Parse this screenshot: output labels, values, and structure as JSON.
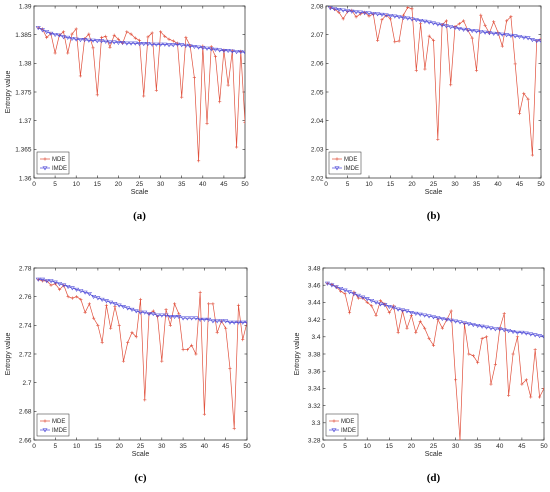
{
  "colors": {
    "mde": "#e0503c",
    "imde": "#4b47d8",
    "axis": "#262626",
    "background": "#ffffff"
  },
  "chart_data": [
    {
      "type": "line",
      "panel_label": "(a)",
      "xlabel": "Scale",
      "ylabel": "Entropy value",
      "xlim": [
        0,
        50
      ],
      "ylim": [
        1.36,
        1.39
      ],
      "xticks": [
        "0",
        "5",
        "10",
        "15",
        "20",
        "25",
        "30",
        "35",
        "40",
        "45",
        "50"
      ],
      "yticks": [
        "1.36",
        "1.365",
        "1.37",
        "1.375",
        "1.38",
        "1.385",
        "1.39"
      ],
      "legend_position": "bottom-left",
      "x": [
        1,
        2,
        3,
        4,
        5,
        6,
        7,
        8,
        9,
        10,
        11,
        12,
        13,
        14,
        15,
        16,
        17,
        18,
        19,
        20,
        21,
        22,
        23,
        24,
        25,
        26,
        27,
        28,
        29,
        30,
        31,
        32,
        33,
        34,
        35,
        36,
        37,
        38,
        39,
        40,
        41,
        42,
        43,
        44,
        45,
        46,
        47,
        48,
        49,
        50
      ],
      "series": [
        {
          "name": "MDE",
          "values": [
            1.3862,
            1.386,
            1.3845,
            1.3852,
            1.3818,
            1.3849,
            1.3855,
            1.3818,
            1.3851,
            1.386,
            1.3778,
            1.3843,
            1.3851,
            1.3827,
            1.3745,
            1.3845,
            1.3847,
            1.3828,
            1.3849,
            1.3842,
            1.3835,
            1.3855,
            1.3851,
            1.3844,
            1.384,
            1.3743,
            1.3846,
            1.3853,
            1.3753,
            1.3855,
            1.3847,
            1.3842,
            1.3839,
            1.3835,
            1.3741,
            1.3845,
            1.3831,
            1.3775,
            1.363,
            1.383,
            1.3695,
            1.3829,
            1.3812,
            1.3733,
            1.3823,
            1.3762,
            1.3822,
            1.3654,
            1.3821,
            1.3697
          ]
        },
        {
          "name": "IMDE",
          "values": [
            1.3862,
            1.3858,
            1.3855,
            1.3852,
            1.385,
            1.3849,
            1.3846,
            1.3845,
            1.3843,
            1.3842,
            1.3841,
            1.3841,
            1.384,
            1.384,
            1.3839,
            1.3839,
            1.3838,
            1.3837,
            1.3837,
            1.3836,
            1.3836,
            1.3835,
            1.3835,
            1.3835,
            1.3834,
            1.3834,
            1.3834,
            1.3833,
            1.3833,
            1.3833,
            1.3833,
            1.3832,
            1.3832,
            1.3833,
            1.3832,
            1.3831,
            1.383,
            1.3829,
            1.3828,
            1.3827,
            1.3826,
            1.3825,
            1.3824,
            1.3823,
            1.3822,
            1.3822,
            1.3821,
            1.382,
            1.382,
            1.3819
          ]
        }
      ]
    },
    {
      "type": "line",
      "panel_label": "(b)",
      "xlabel": "Scale",
      "ylabel": "",
      "xlim": [
        0,
        50
      ],
      "ylim": [
        2.02,
        2.08
      ],
      "xticks": [
        "0",
        "5",
        "10",
        "15",
        "20",
        "25",
        "30",
        "35",
        "40",
        "45",
        "50"
      ],
      "yticks": [
        "2.02",
        "2.03",
        "2.04",
        "2.05",
        "2.06",
        "2.07",
        "2.08"
      ],
      "legend_position": "bottom-left",
      "x": [
        1,
        2,
        3,
        4,
        5,
        6,
        7,
        8,
        9,
        10,
        11,
        12,
        13,
        14,
        15,
        16,
        17,
        18,
        19,
        20,
        21,
        22,
        23,
        24,
        25,
        26,
        27,
        28,
        29,
        30,
        31,
        32,
        33,
        34,
        35,
        36,
        37,
        38,
        39,
        40,
        41,
        42,
        43,
        44,
        45,
        46,
        47,
        48,
        49,
        50
      ],
      "series": [
        {
          "name": "MDE",
          "values": [
            2.0795,
            2.0788,
            2.0778,
            2.0755,
            2.078,
            2.0785,
            2.0762,
            2.0772,
            2.0778,
            2.0765,
            2.0772,
            2.068,
            2.0752,
            2.0768,
            2.0755,
            2.0675,
            2.0678,
            2.0768,
            2.0795,
            2.079,
            2.0575,
            2.0738,
            2.058,
            2.0695,
            2.068,
            2.0335,
            2.0735,
            2.0748,
            2.0525,
            2.0728,
            2.0738,
            2.0748,
            2.0715,
            2.0688,
            2.0575,
            2.0768,
            2.0732,
            2.0705,
            2.0745,
            2.0708,
            2.066,
            2.0748,
            2.0763,
            2.0598,
            2.0425,
            2.0495,
            2.0475,
            2.028,
            2.0678,
            2.0685
          ]
        },
        {
          "name": "IMDE",
          "values": [
            2.0793,
            2.079,
            2.0787,
            2.0785,
            2.0783,
            2.0781,
            2.0779,
            2.0778,
            2.0776,
            2.0775,
            2.0773,
            2.0772,
            2.077,
            2.0768,
            2.0766,
            2.0764,
            2.0762,
            2.0759,
            2.0757,
            2.0754,
            2.0752,
            2.0749,
            2.0746,
            2.0743,
            2.074,
            2.0736,
            2.0733,
            2.073,
            2.0727,
            2.0724,
            2.0721,
            2.0718,
            2.0716,
            2.0714,
            2.0712,
            2.071,
            2.0708,
            2.0706,
            2.0704,
            2.0703,
            2.0701,
            2.0699,
            2.0697,
            2.0695,
            2.0693,
            2.069,
            2.0688,
            2.0682,
            2.0678,
            2.0678
          ]
        }
      ]
    },
    {
      "type": "line",
      "panel_label": "(c)",
      "xlabel": "Scale",
      "ylabel": "Entropy value",
      "xlim": [
        0,
        50
      ],
      "ylim": [
        2.66,
        2.78
      ],
      "xticks": [
        "0",
        "5",
        "10",
        "15",
        "20",
        "25",
        "30",
        "35",
        "40",
        "45",
        "50"
      ],
      "yticks": [
        "2.66",
        "2.68",
        "2.7",
        "2.72",
        "2.74",
        "2.76",
        "2.78"
      ],
      "legend_position": "bottom-left",
      "x": [
        1,
        2,
        3,
        4,
        5,
        6,
        7,
        8,
        9,
        10,
        11,
        12,
        13,
        14,
        15,
        16,
        17,
        18,
        19,
        20,
        21,
        22,
        23,
        24,
        25,
        26,
        27,
        28,
        29,
        30,
        31,
        32,
        33,
        34,
        35,
        36,
        37,
        38,
        39,
        40,
        41,
        42,
        43,
        44,
        45,
        46,
        47,
        48,
        49,
        50
      ],
      "series": [
        {
          "name": "MDE",
          "values": [
            2.772,
            2.771,
            2.771,
            2.768,
            2.769,
            2.765,
            2.768,
            2.76,
            2.759,
            2.76,
            2.758,
            2.749,
            2.755,
            2.745,
            2.74,
            2.728,
            2.754,
            2.738,
            2.753,
            2.74,
            2.715,
            2.728,
            2.735,
            2.732,
            2.758,
            2.688,
            2.748,
            2.75,
            2.746,
            2.715,
            2.751,
            2.74,
            2.755,
            2.748,
            2.723,
            2.723,
            2.726,
            2.72,
            2.763,
            2.678,
            2.755,
            2.755,
            2.735,
            2.743,
            2.738,
            2.71,
            2.668,
            2.754,
            2.73,
            2.742
          ]
        },
        {
          "name": "IMDE",
          "values": [
            2.772,
            2.772,
            2.771,
            2.771,
            2.77,
            2.769,
            2.768,
            2.767,
            2.766,
            2.765,
            2.764,
            2.763,
            2.762,
            2.76,
            2.759,
            2.758,
            2.757,
            2.756,
            2.755,
            2.754,
            2.753,
            2.752,
            2.751,
            2.75,
            2.749,
            2.749,
            2.748,
            2.748,
            2.747,
            2.747,
            2.747,
            2.746,
            2.746,
            2.746,
            2.745,
            2.745,
            2.745,
            2.745,
            2.744,
            2.744,
            2.744,
            2.743,
            2.743,
            2.743,
            2.743,
            2.742,
            2.742,
            2.742,
            2.742,
            2.742
          ]
        }
      ]
    },
    {
      "type": "line",
      "panel_label": "(d)",
      "xlabel": "Scale",
      "ylabel": "Entropy value",
      "xlim": [
        0,
        50
      ],
      "ylim": [
        3.28,
        3.48
      ],
      "xticks": [
        "0",
        "5",
        "10",
        "15",
        "20",
        "25",
        "30",
        "35",
        "40",
        "45",
        "50"
      ],
      "yticks": [
        "3.28",
        "3.3",
        "3.32",
        "3.34",
        "3.36",
        "3.38",
        "3.4",
        "3.42",
        "3.44",
        "3.46",
        "3.48"
      ],
      "legend_position": "bottom-left",
      "x": [
        1,
        2,
        3,
        4,
        5,
        6,
        7,
        8,
        9,
        10,
        11,
        12,
        13,
        14,
        15,
        16,
        17,
        18,
        19,
        20,
        21,
        22,
        23,
        24,
        25,
        26,
        27,
        28,
        29,
        30,
        31,
        32,
        33,
        34,
        35,
        36,
        37,
        38,
        39,
        40,
        41,
        42,
        43,
        44,
        45,
        46,
        47,
        48,
        49,
        50
      ],
      "series": [
        {
          "name": "MDE",
          "values": [
            3.462,
            3.461,
            3.458,
            3.453,
            3.45,
            3.428,
            3.452,
            3.445,
            3.445,
            3.44,
            3.436,
            3.425,
            3.442,
            3.438,
            3.428,
            3.436,
            3.405,
            3.43,
            3.41,
            3.425,
            3.405,
            3.418,
            3.41,
            3.398,
            3.39,
            3.42,
            3.41,
            3.42,
            3.43,
            3.35,
            3.28,
            3.415,
            3.38,
            3.378,
            3.37,
            3.398,
            3.4,
            3.345,
            3.368,
            3.41,
            3.427,
            3.332,
            3.38,
            3.4,
            3.345,
            3.35,
            3.33,
            3.385,
            3.33,
            3.34
          ]
        },
        {
          "name": "IMDE",
          "values": [
            3.462,
            3.46,
            3.458,
            3.456,
            3.454,
            3.452,
            3.45,
            3.448,
            3.446,
            3.444,
            3.442,
            3.44,
            3.438,
            3.437,
            3.435,
            3.434,
            3.432,
            3.431,
            3.43,
            3.428,
            3.427,
            3.426,
            3.425,
            3.424,
            3.423,
            3.422,
            3.421,
            3.42,
            3.419,
            3.418,
            3.417,
            3.416,
            3.415,
            3.414,
            3.413,
            3.412,
            3.411,
            3.41,
            3.409,
            3.409,
            3.408,
            3.407,
            3.406,
            3.405,
            3.405,
            3.404,
            3.403,
            3.402,
            3.401,
            3.4
          ]
        }
      ]
    }
  ]
}
